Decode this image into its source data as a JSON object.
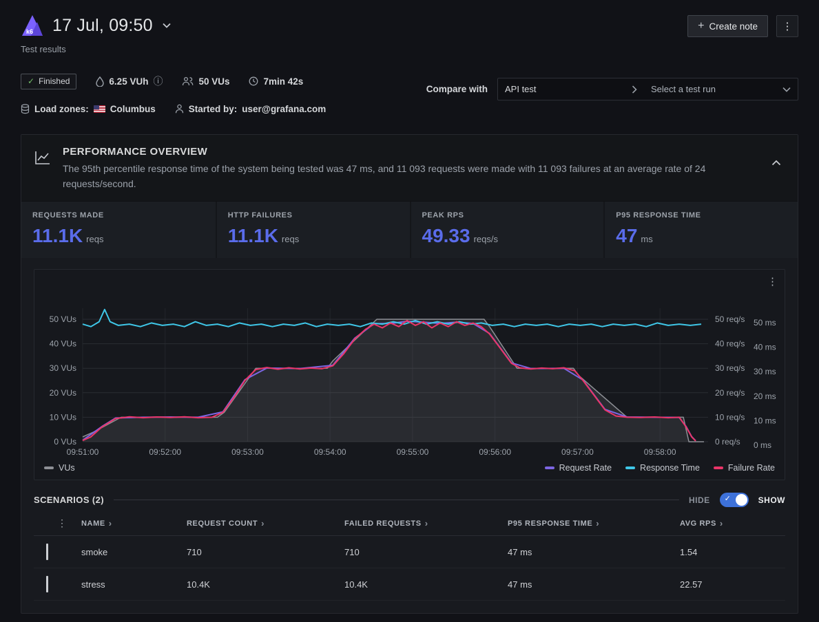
{
  "header": {
    "title": "17 Jul, 09:50",
    "subtitle": "Test results",
    "create_note_label": "Create note"
  },
  "meta": {
    "status": "Finished",
    "vuh": "6.25 VUh",
    "vus": "50 VUs",
    "duration": "7min 42s",
    "load_zones_label": "Load zones:",
    "load_zone": "Columbus",
    "started_by_label": "Started by:",
    "started_by": "user@grafana.com",
    "compare_label": "Compare with",
    "compare_baseline": "API test",
    "compare_placeholder": "Select a test run"
  },
  "overview": {
    "title": "PERFORMANCE OVERVIEW",
    "description": "The 95th percentile response time of the system being tested was 47 ms, and 11 093 requests were made with 11 093 failures at an average rate of 24 requests/second.",
    "stats": [
      {
        "label": "REQUESTS MADE",
        "value": "11.1K",
        "unit": "reqs"
      },
      {
        "label": "HTTP FAILURES",
        "value": "11.1K",
        "unit": "reqs"
      },
      {
        "label": "PEAK RPS",
        "value": "49.33",
        "unit": "reqs/s"
      },
      {
        "label": "P95 RESPONSE TIME",
        "value": "47",
        "unit": "ms"
      }
    ]
  },
  "colors": {
    "accent_blue": "#5a6cea",
    "success_green": "#73bf69",
    "toggle_blue": "#3d71d9",
    "series_vus": "#8e9096",
    "series_request_rate": "#7d66e3",
    "series_response_time": "#3fc7e8",
    "series_failure_rate": "#ea3568"
  },
  "chart_data": {
    "type": "line",
    "title": "",
    "x_ticks": [
      "09:51:00",
      "09:52:00",
      "09:53:00",
      "09:54:00",
      "09:55:00",
      "09:56:00",
      "09:57:00",
      "09:58:00"
    ],
    "x_tick_seconds": [
      0,
      60,
      120,
      180,
      240,
      300,
      360,
      420
    ],
    "x_domain_seconds": [
      0,
      455
    ],
    "value_max": 54.5,
    "left_axis": {
      "unit": "VUs",
      "ticks": [
        0,
        10,
        20,
        30,
        40,
        50
      ]
    },
    "right_axis_1": {
      "unit": "req/s",
      "ticks": [
        0,
        10,
        20,
        30,
        40,
        50
      ]
    },
    "right_axis_2": {
      "unit": "ms",
      "ticks": [
        0,
        10,
        20,
        30,
        40,
        50
      ]
    },
    "grid": true,
    "legend_left": [
      "VUs"
    ],
    "legend_right": [
      "Request Rate",
      "Response Time",
      "Failure Rate"
    ],
    "series": [
      {
        "name": "VUs",
        "axis": "left",
        "type": "area",
        "color": "#8e9096",
        "fill": "rgba(142,144,150,0.16)",
        "points": [
          [
            0,
            2
          ],
          [
            8,
            4
          ],
          [
            28,
            10
          ],
          [
            98,
            10
          ],
          [
            103,
            12
          ],
          [
            126,
            30
          ],
          [
            178,
            30
          ],
          [
            182,
            33
          ],
          [
            214,
            50
          ],
          [
            292,
            50
          ],
          [
            296,
            47
          ],
          [
            316,
            30
          ],
          [
            357,
            30
          ],
          [
            361,
            27
          ],
          [
            396,
            10
          ],
          [
            437,
            10
          ],
          [
            441,
            0
          ],
          [
            452,
            0
          ]
        ]
      },
      {
        "name": "Request Rate",
        "axis": "right_1",
        "type": "line",
        "color": "#7d66e3",
        "points": [
          [
            0,
            0.6
          ],
          [
            14,
            6.2
          ],
          [
            24,
            9.7
          ],
          [
            44,
            10
          ],
          [
            64,
            10.1
          ],
          [
            84,
            10
          ],
          [
            102,
            12.2
          ],
          [
            118,
            25.3
          ],
          [
            134,
            30.1
          ],
          [
            158,
            29.9
          ],
          [
            182,
            31.2
          ],
          [
            198,
            42.3
          ],
          [
            212,
            48.2
          ],
          [
            224,
            48.3
          ],
          [
            236,
            49.2
          ],
          [
            248,
            48.8
          ],
          [
            260,
            48.3
          ],
          [
            272,
            48.8
          ],
          [
            284,
            48.3
          ],
          [
            296,
            44.2
          ],
          [
            312,
            32.2
          ],
          [
            326,
            29.9
          ],
          [
            350,
            30
          ],
          [
            364,
            25.2
          ],
          [
            380,
            13.2
          ],
          [
            396,
            10.1
          ],
          [
            416,
            10
          ],
          [
            434,
            9.9
          ],
          [
            439,
            6.2
          ],
          [
            443,
            2.1
          ],
          [
            446,
            0.4
          ]
        ]
      },
      {
        "name": "Response Time",
        "axis": "right_2",
        "type": "line",
        "color": "#3fc7e8",
        "points": [
          [
            0,
            48
          ],
          [
            6,
            47
          ],
          [
            12,
            49
          ],
          [
            16,
            54
          ],
          [
            20,
            49
          ],
          [
            26,
            47.5
          ],
          [
            34,
            48
          ],
          [
            42,
            47
          ],
          [
            50,
            48.5
          ],
          [
            58,
            47.5
          ],
          [
            66,
            48
          ],
          [
            74,
            47
          ],
          [
            82,
            49
          ],
          [
            90,
            47.5
          ],
          [
            98,
            48
          ],
          [
            106,
            47
          ],
          [
            114,
            48.5
          ],
          [
            122,
            47.5
          ],
          [
            130,
            48
          ],
          [
            138,
            47
          ],
          [
            146,
            48
          ],
          [
            154,
            47.5
          ],
          [
            162,
            48.5
          ],
          [
            170,
            47
          ],
          [
            178,
            48
          ],
          [
            186,
            47.5
          ],
          [
            194,
            48
          ],
          [
            202,
            47
          ],
          [
            210,
            48.5
          ],
          [
            218,
            48
          ],
          [
            226,
            49
          ],
          [
            234,
            48
          ],
          [
            242,
            49.5
          ],
          [
            250,
            48
          ],
          [
            258,
            49
          ],
          [
            266,
            48
          ],
          [
            274,
            49
          ],
          [
            282,
            48
          ],
          [
            290,
            48.5
          ],
          [
            298,
            47.5
          ],
          [
            306,
            48
          ],
          [
            314,
            47
          ],
          [
            322,
            48
          ],
          [
            330,
            47.5
          ],
          [
            338,
            48
          ],
          [
            346,
            47
          ],
          [
            354,
            48
          ],
          [
            362,
            47.5
          ],
          [
            370,
            48
          ],
          [
            378,
            47
          ],
          [
            386,
            48
          ],
          [
            394,
            47.5
          ],
          [
            402,
            48
          ],
          [
            410,
            47
          ],
          [
            418,
            48.5
          ],
          [
            426,
            47.5
          ],
          [
            434,
            48
          ],
          [
            442,
            47.5
          ],
          [
            450,
            48
          ]
        ]
      },
      {
        "name": "Failure Rate",
        "axis": "right_1",
        "type": "line",
        "color": "#ea3568",
        "points": [
          [
            0,
            0.5
          ],
          [
            6,
            2
          ],
          [
            14,
            6
          ],
          [
            24,
            9.5
          ],
          [
            34,
            10.2
          ],
          [
            44,
            9.8
          ],
          [
            54,
            10.1
          ],
          [
            64,
            9.9
          ],
          [
            74,
            10.2
          ],
          [
            84,
            9.8
          ],
          [
            94,
            10
          ],
          [
            102,
            12
          ],
          [
            110,
            18
          ],
          [
            118,
            25
          ],
          [
            126,
            29.5
          ],
          [
            134,
            30.3
          ],
          [
            142,
            29.6
          ],
          [
            150,
            30.2
          ],
          [
            158,
            29.7
          ],
          [
            166,
            30.1
          ],
          [
            174,
            29.8
          ],
          [
            182,
            31
          ],
          [
            190,
            36
          ],
          [
            198,
            42
          ],
          [
            206,
            46
          ],
          [
            212,
            48
          ],
          [
            218,
            46.5
          ],
          [
            224,
            48.5
          ],
          [
            230,
            47
          ],
          [
            236,
            49.5
          ],
          [
            242,
            47.5
          ],
          [
            248,
            49
          ],
          [
            254,
            46.5
          ],
          [
            260,
            48.5
          ],
          [
            266,
            47
          ],
          [
            272,
            49
          ],
          [
            278,
            47.5
          ],
          [
            284,
            48.5
          ],
          [
            290,
            47
          ],
          [
            296,
            44
          ],
          [
            304,
            38
          ],
          [
            312,
            32
          ],
          [
            318,
            30.2
          ],
          [
            326,
            29.7
          ],
          [
            334,
            30.1
          ],
          [
            342,
            29.8
          ],
          [
            350,
            30.2
          ],
          [
            358,
            29
          ],
          [
            364,
            25
          ],
          [
            372,
            19
          ],
          [
            380,
            13
          ],
          [
            388,
            10.5
          ],
          [
            396,
            10
          ],
          [
            406,
            9.9
          ],
          [
            416,
            10.1
          ],
          [
            426,
            9.8
          ],
          [
            434,
            10
          ],
          [
            439,
            6
          ],
          [
            443,
            2
          ],
          [
            446,
            0.3
          ]
        ]
      }
    ]
  },
  "scenarios": {
    "title": "SCENARIOS (2)",
    "hide_label": "HIDE",
    "show_label": "SHOW",
    "columns": [
      "NAME",
      "REQUEST COUNT",
      "FAILED REQUESTS",
      "P95 RESPONSE TIME",
      "AVG RPS"
    ],
    "rows": [
      {
        "name": "smoke",
        "request_count": "710",
        "failed_requests": "710",
        "p95": "47 ms",
        "avg_rps": "1.54"
      },
      {
        "name": "stress",
        "request_count": "10.4K",
        "failed_requests": "10.4K",
        "p95": "47 ms",
        "avg_rps": "22.57"
      }
    ]
  }
}
